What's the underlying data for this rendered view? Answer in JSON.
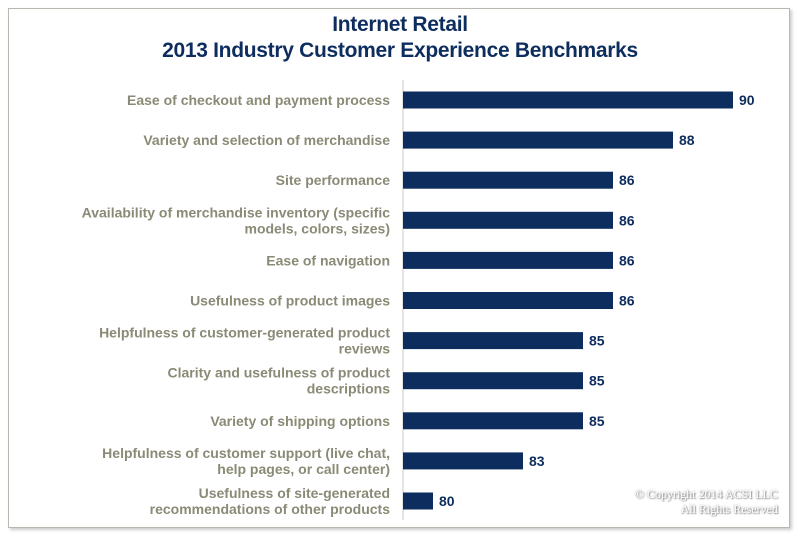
{
  "chart_data": {
    "type": "bar",
    "orientation": "horizontal",
    "title": "Internet Retail",
    "subtitle": "2013 Industry Customer Experience Benchmarks",
    "categories": [
      "Ease of checkout and payment process",
      "Variety and selection of merchandise",
      "Site performance",
      "Availability of merchandise inventory (specific models, colors, sizes)",
      "Ease of navigation",
      "Usefulness of product images",
      "Helpfulness of customer-generated product reviews",
      "Clarity and usefulness of product descriptions",
      "Variety of shipping options",
      "Helpfulness of customer support (live chat, help pages, or call center)",
      "Usefulness of site-generated recommendations of other products"
    ],
    "category_lines": [
      [
        "Ease of checkout and payment process"
      ],
      [
        "Variety and selection of merchandise"
      ],
      [
        "Site performance"
      ],
      [
        "Availability of merchandise inventory (specific",
        "models, colors, sizes)"
      ],
      [
        "Ease of navigation"
      ],
      [
        "Usefulness of product images"
      ],
      [
        "Helpfulness of customer-generated product",
        "reviews"
      ],
      [
        "Clarity and usefulness of product",
        "descriptions"
      ],
      [
        "Variety of shipping options"
      ],
      [
        "Helpfulness of customer support (live chat,",
        "help pages, or call center)"
      ],
      [
        "Usefulness of site-generated",
        "recommendations of other products"
      ]
    ],
    "values": [
      90,
      88,
      86,
      86,
      86,
      86,
      85,
      85,
      85,
      83,
      80
    ],
    "xlim": [
      79,
      90
    ],
    "grid": false,
    "legend": "none",
    "bar_color": "#0d2d5e",
    "label_color": "#8a8a76"
  },
  "copyright": {
    "line1": "© Copyright 2014 ACSI LLC",
    "line2": "All Rights Reserved"
  }
}
